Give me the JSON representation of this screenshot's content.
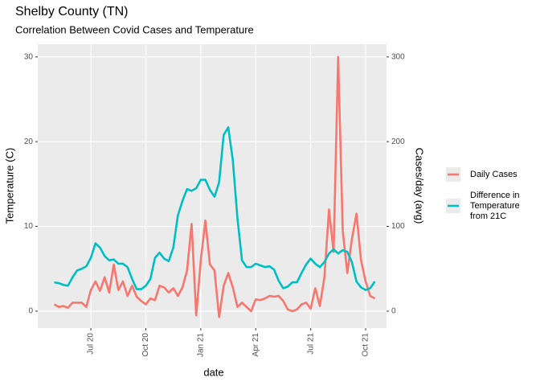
{
  "chart_data": {
    "type": "line",
    "title": "Shelby County (TN)",
    "subtitle": "Correlation Between Covid Cases and Temperature",
    "x_label": "date",
    "y_label": "Temperature (C)",
    "y2_label": "Cases/day (avg)",
    "x": [
      4.0,
      4.25,
      4.5,
      4.75,
      5.0,
      5.25,
      5.5,
      5.75,
      6.0,
      6.25,
      6.5,
      6.75,
      7.0,
      7.25,
      7.5,
      7.75,
      8.0,
      8.25,
      8.5,
      8.75,
      9.0,
      9.25,
      9.5,
      9.75,
      10.0,
      10.25,
      10.5,
      10.75,
      11.0,
      11.25,
      11.5,
      11.75,
      12.0,
      12.25,
      12.5,
      12.75,
      13.0,
      13.25,
      13.5,
      13.75,
      14.0,
      14.25,
      14.5,
      14.75,
      15.0,
      15.25,
      15.5,
      15.75,
      16.0,
      16.25,
      16.5,
      16.75,
      17.0,
      17.25,
      17.5,
      17.75,
      18.0,
      18.25,
      18.5,
      18.75,
      19.0,
      19.25,
      19.5,
      19.75,
      20.0,
      20.25,
      20.5,
      20.75,
      21.0,
      21.25,
      21.5
    ],
    "series": [
      {
        "name": "Daily Cases",
        "color": "#F8766D",
        "axis": "y2",
        "values": [
          8,
          5,
          6,
          4,
          10,
          10,
          10,
          5,
          25,
          35,
          24,
          40,
          22,
          55,
          25,
          35,
          18,
          30,
          17,
          12,
          8,
          15,
          13,
          30,
          28,
          22,
          27,
          18,
          28,
          48,
          103,
          -5,
          60,
          107,
          55,
          48,
          -7,
          30,
          45,
          28,
          5,
          10,
          5,
          0,
          14,
          13,
          15,
          18,
          17,
          18,
          12,
          2,
          0,
          2,
          8,
          10,
          3,
          27,
          6,
          40,
          120,
          70,
          300,
          95,
          45,
          85,
          115,
          60,
          35,
          18,
          15
        ]
      },
      {
        "name": "Difference in\nTemperature\nfrom 21C",
        "color": "#00BFC4",
        "values": [
          3.4,
          3.3,
          3.1,
          3.0,
          4.0,
          4.8,
          5.0,
          5.3,
          6.3,
          8.0,
          7.5,
          6.5,
          6.0,
          6.1,
          5.6,
          5.6,
          5.2,
          3.8,
          2.6,
          2.6,
          3.0,
          3.8,
          6.3,
          6.9,
          6.2,
          5.9,
          7.5,
          11.3,
          13.0,
          14.4,
          14.2,
          14.5,
          15.5,
          15.5,
          14.3,
          13.5,
          15.2,
          20.8,
          21.7,
          17.8,
          11.0,
          6.0,
          5.2,
          5.2,
          5.6,
          5.4,
          5.2,
          5.3,
          4.9,
          3.6,
          2.7,
          2.9,
          3.4,
          3.4,
          4.5,
          5.5,
          6.2,
          5.6,
          5.2,
          5.8,
          6.8,
          7.3,
          6.8,
          7.2,
          7.0,
          5.8,
          3.5,
          2.8,
          2.5,
          2.7,
          3.5
        ]
      }
    ],
    "xlim": [
      3.1,
      22.14
    ],
    "xticks": [
      {
        "value": 6,
        "label": "Jul 20"
      },
      {
        "value": 9,
        "label": "Oct 20"
      },
      {
        "value": 12,
        "label": "Jan 21"
      },
      {
        "value": 15,
        "label": "Apr 21"
      },
      {
        "value": 18,
        "label": "Jul 21"
      },
      {
        "value": 21,
        "label": "Oct 21"
      }
    ],
    "ylim": [
      -2,
      31.5
    ],
    "yticks": [
      0,
      10,
      20,
      30
    ],
    "y2lim": [
      -20,
      315
    ],
    "y2ticks": [
      0,
      100,
      200,
      300
    ],
    "grid": true,
    "legend": "right"
  }
}
